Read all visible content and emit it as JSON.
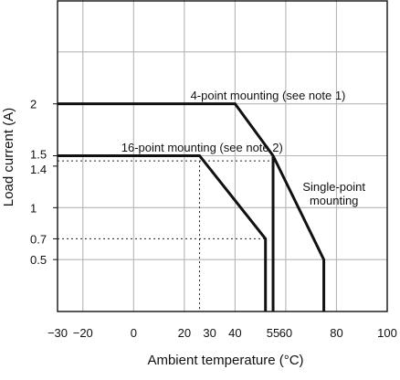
{
  "chart_data": {
    "type": "line",
    "xlabel": "Ambient temperature (°C)",
    "ylabel": "Load current (A)",
    "xlim": [
      -30,
      100
    ],
    "ylim": [
      0,
      3
    ],
    "grid": true,
    "x_ticks": [
      {
        "value": -30,
        "label": "−30"
      },
      {
        "value": -20,
        "label": "−20"
      },
      {
        "value": 0,
        "label": "0"
      },
      {
        "value": 20,
        "label": "20"
      },
      {
        "value": 30,
        "label": "30"
      },
      {
        "value": 40,
        "label": "40"
      },
      {
        "value": 55,
        "label": "55"
      },
      {
        "value": 60,
        "label": "60"
      },
      {
        "value": 80,
        "label": "80"
      },
      {
        "value": 100,
        "label": "100"
      }
    ],
    "y_ticks": [
      {
        "value": 0.5,
        "label": "0.5"
      },
      {
        "value": 0.7,
        "label": "0.7"
      },
      {
        "value": 1,
        "label": "1"
      },
      {
        "value": 1.4,
        "label": "1.4"
      },
      {
        "value": 1.5,
        "label": "1.5"
      },
      {
        "value": 2,
        "label": "2"
      }
    ],
    "grid_x": [
      -20,
      0,
      20,
      40,
      60,
      80
    ],
    "grid_y": [
      0.5,
      1,
      1.5,
      2,
      2.5
    ],
    "series": [
      {
        "name": "4-point mounting (see note 1)",
        "x": [
          -30,
          40,
          55
        ],
        "y": [
          2,
          2,
          1.5
        ]
      },
      {
        "name": "16-point mounting (see note 2)",
        "x": [
          -30,
          26,
          52,
          52
        ],
        "y": [
          1.5,
          1.5,
          0.7,
          0
        ]
      },
      {
        "name": "Single-point mounting",
        "x": [
          55,
          55,
          55,
          75,
          75
        ],
        "y": [
          0,
          1.5,
          1.5,
          0.5,
          0
        ]
      }
    ],
    "reference_lines": [
      {
        "points": [
          [
            -30,
            1.45
          ],
          [
            55,
            1.45
          ]
        ]
      },
      {
        "points": [
          [
            -30,
            0.7
          ],
          [
            52,
            0.7
          ]
        ]
      },
      {
        "points": [
          [
            26,
            1.45
          ],
          [
            26,
            0
          ]
        ]
      }
    ],
    "annotations": [
      {
        "text": "4-point mounting (see note 1)",
        "x": 53,
        "y": 2.04,
        "anchor": "middle"
      },
      {
        "text": "16-point mounting (see note 2)",
        "x": 27,
        "y": 1.54,
        "anchor": "middle"
      },
      {
        "text": "Single-point",
        "x": 79,
        "y": 1.16,
        "anchor": "middle"
      },
      {
        "text": "mounting",
        "x": 79,
        "y": 1.03,
        "anchor": "middle"
      }
    ]
  }
}
